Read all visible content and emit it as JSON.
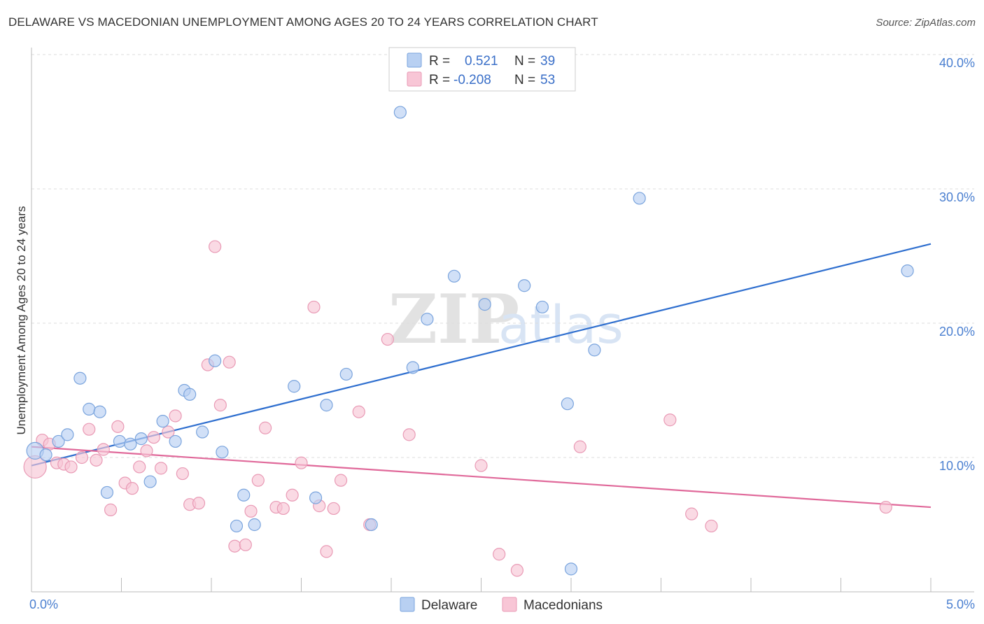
{
  "title": "DELAWARE VS MACEDONIAN UNEMPLOYMENT AMONG AGES 20 TO 24 YEARS CORRELATION CHART",
  "source": "Source: ZipAtlas.com",
  "watermark": {
    "zip": "ZIP",
    "atlas": "atlas"
  },
  "colors": {
    "delaware_fill": "#b8d0f2",
    "delaware_stroke": "#7aa4dd",
    "delaware_line": "#2f6fcf",
    "mac_fill": "#f8c6d6",
    "mac_stroke": "#e99ab5",
    "mac_line": "#e0699a",
    "tick_text": "#4a7fd0",
    "grid": "#dddddd"
  },
  "legend": {
    "rows": [
      {
        "r_label": "R =",
        "r_value": "0.521",
        "n_label": "N =",
        "n_value": "39"
      },
      {
        "r_label": "R =",
        "r_value": "-0.208",
        "n_label": "N =",
        "n_value": "53"
      }
    ]
  },
  "bottom_legend": [
    "Delaware",
    "Macedonians"
  ],
  "chart_data": {
    "type": "scatter",
    "title": "DELAWARE VS MACEDONIAN UNEMPLOYMENT AMONG AGES 20 TO 24 YEARS CORRELATION CHART",
    "xlabel": "",
    "ylabel": "Unemployment Among Ages 20 to 24 years",
    "xlim": [
      0,
      5
    ],
    "ylim": [
      0,
      40
    ],
    "x_tick_labels": [
      "0.0%",
      "5.0%"
    ],
    "y_ticks": [
      10,
      20,
      30,
      40
    ],
    "y_tick_labels": [
      "10.0%",
      "20.0%",
      "30.0%",
      "40.0%"
    ],
    "grid": true,
    "legend_position": "top-center",
    "series": [
      {
        "name": "Delaware",
        "points": [
          [
            0.02,
            10.5
          ],
          [
            0.08,
            10.2
          ],
          [
            0.15,
            11.2
          ],
          [
            0.2,
            11.7
          ],
          [
            0.27,
            15.9
          ],
          [
            0.32,
            13.6
          ],
          [
            0.38,
            13.4
          ],
          [
            0.42,
            7.4
          ],
          [
            0.49,
            11.2
          ],
          [
            0.55,
            11.0
          ],
          [
            0.61,
            11.4
          ],
          [
            0.66,
            8.2
          ],
          [
            0.73,
            12.7
          ],
          [
            0.8,
            11.2
          ],
          [
            0.85,
            15.0
          ],
          [
            0.88,
            14.7
          ],
          [
            0.95,
            11.9
          ],
          [
            1.02,
            17.2
          ],
          [
            1.06,
            10.4
          ],
          [
            1.14,
            4.9
          ],
          [
            1.18,
            7.2
          ],
          [
            1.24,
            5.0
          ],
          [
            1.46,
            15.3
          ],
          [
            1.58,
            7.0
          ],
          [
            1.64,
            13.9
          ],
          [
            1.75,
            16.2
          ],
          [
            1.89,
            5.0
          ],
          [
            2.05,
            35.7
          ],
          [
            2.12,
            16.7
          ],
          [
            2.2,
            20.3
          ],
          [
            2.35,
            23.5
          ],
          [
            2.52,
            21.4
          ],
          [
            2.74,
            22.8
          ],
          [
            2.84,
            21.2
          ],
          [
            3.0,
            1.7
          ],
          [
            2.98,
            14.0
          ],
          [
            3.13,
            18.0
          ],
          [
            3.38,
            29.3
          ],
          [
            4.87,
            23.9
          ]
        ]
      },
      {
        "name": "Macedonians",
        "points": [
          [
            0.02,
            9.3
          ],
          [
            0.06,
            11.3
          ],
          [
            0.1,
            11.0
          ],
          [
            0.14,
            9.6
          ],
          [
            0.18,
            9.5
          ],
          [
            0.22,
            9.3
          ],
          [
            0.28,
            10.0
          ],
          [
            0.32,
            12.1
          ],
          [
            0.36,
            9.8
          ],
          [
            0.4,
            10.6
          ],
          [
            0.44,
            6.1
          ],
          [
            0.48,
            12.3
          ],
          [
            0.52,
            8.1
          ],
          [
            0.56,
            7.7
          ],
          [
            0.6,
            9.3
          ],
          [
            0.64,
            10.5
          ],
          [
            0.68,
            11.5
          ],
          [
            0.72,
            9.2
          ],
          [
            0.76,
            11.9
          ],
          [
            0.8,
            13.1
          ],
          [
            0.84,
            8.8
          ],
          [
            0.88,
            6.5
          ],
          [
            0.93,
            6.6
          ],
          [
            0.98,
            16.9
          ],
          [
            1.02,
            25.7
          ],
          [
            1.05,
            13.9
          ],
          [
            1.1,
            17.1
          ],
          [
            1.13,
            3.4
          ],
          [
            1.19,
            3.5
          ],
          [
            1.22,
            6.0
          ],
          [
            1.26,
            8.3
          ],
          [
            1.3,
            12.2
          ],
          [
            1.36,
            6.3
          ],
          [
            1.4,
            6.2
          ],
          [
            1.45,
            7.2
          ],
          [
            1.5,
            9.6
          ],
          [
            1.57,
            21.2
          ],
          [
            1.6,
            6.4
          ],
          [
            1.64,
            3.0
          ],
          [
            1.68,
            6.2
          ],
          [
            1.72,
            8.3
          ],
          [
            1.82,
            13.4
          ],
          [
            1.88,
            5.0
          ],
          [
            1.98,
            18.8
          ],
          [
            2.1,
            11.7
          ],
          [
            2.5,
            9.4
          ],
          [
            2.6,
            2.8
          ],
          [
            2.7,
            1.6
          ],
          [
            3.05,
            10.8
          ],
          [
            3.55,
            12.8
          ],
          [
            3.67,
            5.8
          ],
          [
            3.78,
            4.9
          ],
          [
            4.75,
            6.3
          ]
        ]
      }
    ],
    "trendlines": [
      {
        "name": "Delaware",
        "x": [
          0,
          5
        ],
        "y": [
          9.4,
          25.9
        ]
      },
      {
        "name": "Macedonians",
        "x": [
          0,
          5
        ],
        "y": [
          10.8,
          6.3
        ]
      }
    ]
  }
}
